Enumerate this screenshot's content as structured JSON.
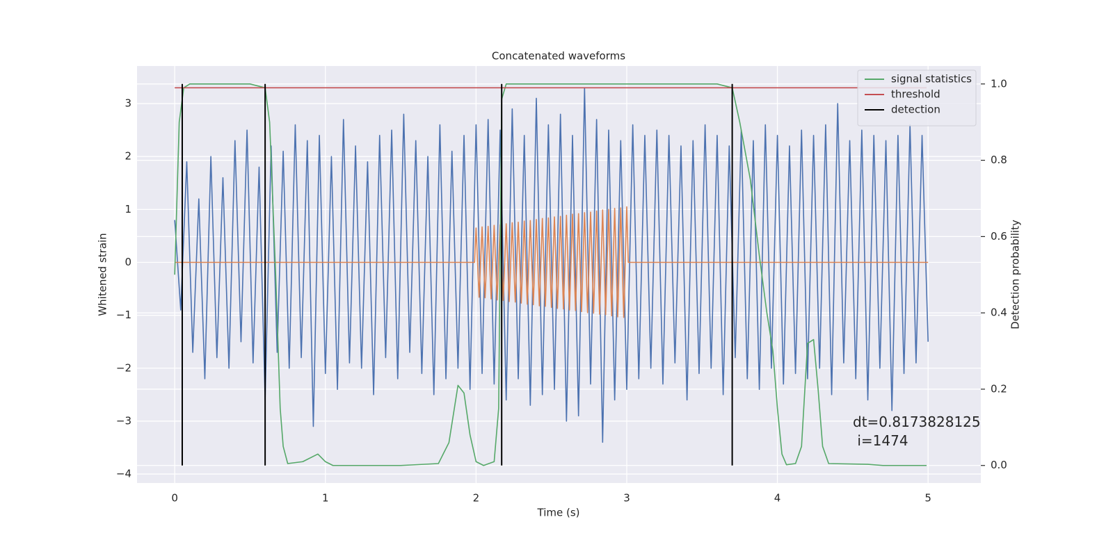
{
  "chart_data": {
    "type": "line",
    "title": "Concatenated waveforms",
    "xlabel": "Time (s)",
    "ylabel": "Whitened strain",
    "y2label": "Detection probability",
    "annotation": [
      "dt=0.8173828125",
      " i=1474"
    ],
    "xlim": [
      -0.25,
      5.35
    ],
    "ylim": [
      -4.17,
      3.71
    ],
    "y2lim": [
      -0.046,
      1.047
    ],
    "xticks": [
      0,
      1,
      2,
      3,
      4,
      5
    ],
    "yticks": [
      {
        "value": -4,
        "label": "−4"
      },
      {
        "value": -3,
        "label": "−3"
      },
      {
        "value": -2,
        "label": "−2"
      },
      {
        "value": -1,
        "label": "−1"
      },
      0,
      1,
      2,
      3
    ],
    "y2ticks": [
      {
        "value": 0,
        "label": "0.0"
      },
      0.2,
      0.4,
      0.6,
      0.8,
      {
        "value": 1,
        "label": "1.0"
      }
    ],
    "grid": true,
    "legend": "upper right",
    "series": [
      {
        "color": "#4c72b0",
        "axis": "y",
        "style": "line",
        "x": [
          0,
          0.04,
          0.08,
          0.12,
          0.16,
          0.2,
          0.24,
          0.28,
          0.32,
          0.36,
          0.4,
          0.44,
          0.48,
          0.52,
          0.56,
          0.6,
          0.64,
          0.68,
          0.72,
          0.76,
          0.8,
          0.84,
          0.88,
          0.92,
          0.96,
          1,
          1.04,
          1.08,
          1.12,
          1.16,
          1.2,
          1.24,
          1.28,
          1.32,
          1.36,
          1.4,
          1.44,
          1.48,
          1.52,
          1.56,
          1.6,
          1.64,
          1.68,
          1.72,
          1.76,
          1.8,
          1.84,
          1.88,
          1.92,
          1.96,
          2,
          2.04,
          2.08,
          2.12,
          2.16,
          2.2,
          2.24,
          2.28,
          2.32,
          2.36,
          2.4,
          2.44,
          2.48,
          2.52,
          2.56,
          2.6,
          2.64,
          2.68,
          2.72,
          2.76,
          2.8,
          2.84,
          2.88,
          2.92,
          2.96,
          3,
          3.04,
          3.08,
          3.12,
          3.16,
          3.2,
          3.24,
          3.28,
          3.32,
          3.36,
          3.4,
          3.44,
          3.48,
          3.52,
          3.56,
          3.6,
          3.64,
          3.68,
          3.72,
          3.76,
          3.8,
          3.84,
          3.88,
          3.92,
          3.96,
          4,
          4.04,
          4.08,
          4.12,
          4.16,
          4.2,
          4.24,
          4.28,
          4.32,
          4.36,
          4.4,
          4.44,
          4.48,
          4.52,
          4.56,
          4.6,
          4.64,
          4.68,
          4.72,
          4.76,
          4.8,
          4.84,
          4.88,
          4.92,
          4.96,
          5
        ],
        "values": [
          0.8,
          -0.9,
          1.9,
          -1.7,
          1.2,
          -2.2,
          2.0,
          -1.8,
          1.6,
          -2.0,
          2.3,
          -1.5,
          2.5,
          -1.9,
          1.8,
          -2.6,
          2.2,
          -1.7,
          2.1,
          -2.0,
          2.6,
          -1.8,
          2.3,
          -3.1,
          2.4,
          -2.1,
          2.0,
          -2.4,
          2.7,
          -1.9,
          2.2,
          -2.0,
          1.9,
          -2.5,
          2.4,
          -1.8,
          2.5,
          -2.2,
          2.8,
          -1.7,
          2.3,
          -2.1,
          2.0,
          -2.5,
          2.6,
          -2.2,
          2.1,
          -2.0,
          2.4,
          -2.4,
          2.6,
          -2.1,
          2.7,
          -2.3,
          2.5,
          -2.6,
          2.9,
          -2.2,
          2.4,
          -2.7,
          3.1,
          -2.5,
          2.6,
          -2.4,
          2.8,
          -3.0,
          2.4,
          -2.9,
          3.3,
          -2.3,
          2.7,
          -3.4,
          2.5,
          -2.6,
          2.3,
          -2.4,
          2.6,
          -2.2,
          2.4,
          -2.0,
          2.5,
          -2.3,
          2.4,
          -1.9,
          2.2,
          -2.6,
          2.3,
          -2.1,
          2.6,
          -2.0,
          2.4,
          -2.5,
          2.2,
          -1.8,
          2.5,
          -2.2,
          2.3,
          -2.4,
          2.6,
          -2.0,
          2.4,
          -2.3,
          2.2,
          -2.1,
          2.5,
          -2.2,
          2.4,
          -2.0,
          2.6,
          -2.5,
          3.0,
          -1.9,
          2.3,
          -2.2,
          2.5,
          -2.6,
          2.4,
          -2.0,
          2.3,
          -2.8,
          2.4,
          -2.1,
          2.6,
          -1.9,
          2.4,
          -1.5
        ]
      },
      {
        "color": "#dd8452",
        "axis": "y",
        "style": "line",
        "x": [
          0,
          1.99,
          2.0,
          2.02,
          2.04,
          2.06,
          2.08,
          2.1,
          2.12,
          2.14,
          2.16,
          2.18,
          2.2,
          2.22,
          2.24,
          2.26,
          2.28,
          2.3,
          2.32,
          2.34,
          2.36,
          2.38,
          2.4,
          2.42,
          2.44,
          2.46,
          2.48,
          2.5,
          2.52,
          2.54,
          2.56,
          2.58,
          2.6,
          2.62,
          2.64,
          2.66,
          2.68,
          2.7,
          2.72,
          2.74,
          2.76,
          2.78,
          2.8,
          2.82,
          2.84,
          2.86,
          2.88,
          2.9,
          2.92,
          2.94,
          2.96,
          2.98,
          3.0,
          3.01,
          5
        ],
        "values": [
          0,
          0,
          0.65,
          -0.66,
          0.67,
          -0.67,
          0.68,
          -0.69,
          0.7,
          -0.71,
          0.71,
          -0.72,
          0.73,
          -0.74,
          0.75,
          -0.75,
          0.76,
          -0.77,
          0.78,
          -0.79,
          0.79,
          -0.8,
          0.81,
          -0.82,
          0.83,
          -0.83,
          0.84,
          -0.85,
          0.86,
          -0.87,
          0.87,
          -0.88,
          0.89,
          -0.9,
          0.91,
          -0.91,
          0.92,
          -0.93,
          0.94,
          -0.95,
          0.95,
          -0.96,
          0.97,
          -0.98,
          0.99,
          -0.99,
          1.0,
          -1.01,
          1.02,
          -1.03,
          1.03,
          -1.04,
          1.05,
          0,
          0
        ]
      },
      {
        "name": "signal statistics",
        "color": "#55a868",
        "axis": "y2",
        "style": "line",
        "x": [
          0,
          0.03,
          0.06,
          0.1,
          0.5,
          0.6,
          0.63,
          0.67,
          0.7,
          0.72,
          0.75,
          0.85,
          0.95,
          1.0,
          1.05,
          1.5,
          1.75,
          1.82,
          1.88,
          1.92,
          1.96,
          2.0,
          2.05,
          2.12,
          2.15,
          2.17,
          2.2,
          3.6,
          3.7,
          3.75,
          3.82,
          3.88,
          3.93,
          3.97,
          4.0,
          4.03,
          4.06,
          4.12,
          4.16,
          4.2,
          4.24,
          4.27,
          4.3,
          4.34,
          4.6,
          4.7,
          4.99
        ],
        "values": [
          0.5,
          0.9,
          0.99,
          1.0,
          1.0,
          0.99,
          0.9,
          0.5,
          0.15,
          0.05,
          0.005,
          0.01,
          0.03,
          0.01,
          0.0,
          0.0,
          0.005,
          0.06,
          0.21,
          0.19,
          0.08,
          0.01,
          0.0,
          0.01,
          0.15,
          0.96,
          1.0,
          1.0,
          0.99,
          0.9,
          0.75,
          0.55,
          0.4,
          0.3,
          0.15,
          0.03,
          0.002,
          0.005,
          0.05,
          0.32,
          0.33,
          0.2,
          0.05,
          0.005,
          0.003,
          0.0,
          0.0
        ]
      },
      {
        "name": "threshold",
        "color": "#c44e52",
        "axis": "y2",
        "style": "line",
        "x": [
          0,
          4.99
        ],
        "values": [
          0.99,
          0.99
        ]
      },
      {
        "name": "detection",
        "color": "#000000",
        "axis": "y2",
        "style": "vlines",
        "x": [
          0.05,
          0.6,
          2.17,
          3.7
        ],
        "values": [
          1,
          1,
          1,
          1
        ]
      }
    ]
  }
}
